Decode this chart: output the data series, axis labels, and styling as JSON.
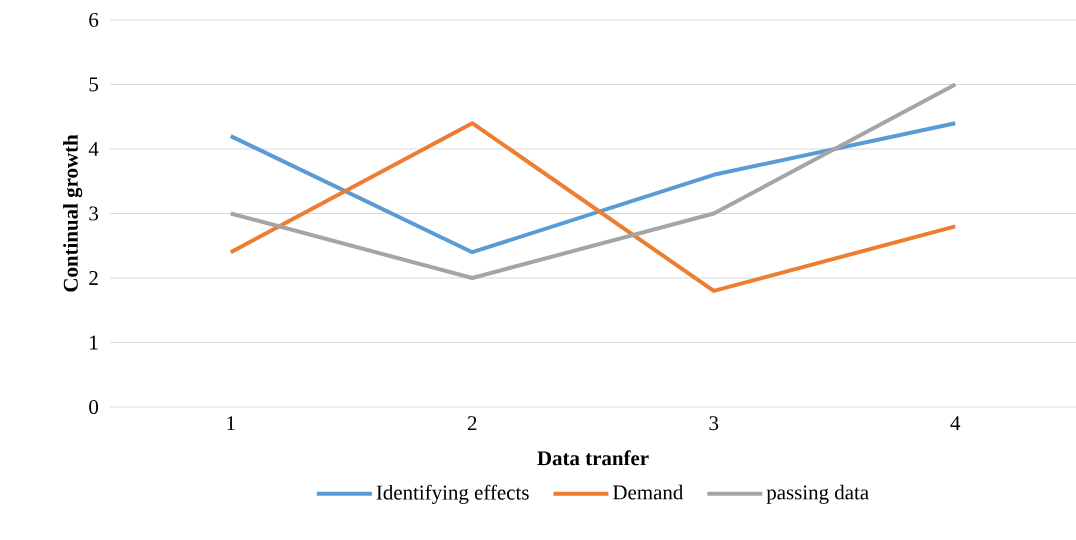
{
  "chart_data": {
    "type": "line",
    "xlabel": "Data tranfer",
    "ylabel": "Continual growth",
    "categories": [
      "1",
      "2",
      "3",
      "4"
    ],
    "series": [
      {
        "name": "Identifying effects",
        "color": "#5b9bd5",
        "values": [
          4.2,
          2.4,
          3.6,
          4.4
        ]
      },
      {
        "name": "Demand",
        "color": "#ed7d31",
        "values": [
          2.4,
          4.4,
          1.8,
          2.8
        ]
      },
      {
        "name": "passing data",
        "color": "#a5a5a5",
        "values": [
          3,
          2,
          3,
          5
        ]
      }
    ],
    "ylim": [
      0,
      6
    ],
    "yticks": [
      0,
      1,
      2,
      3,
      4,
      5,
      6
    ],
    "grid": "y",
    "legend": "bottom",
    "marker": "none",
    "line_style": "solid"
  }
}
